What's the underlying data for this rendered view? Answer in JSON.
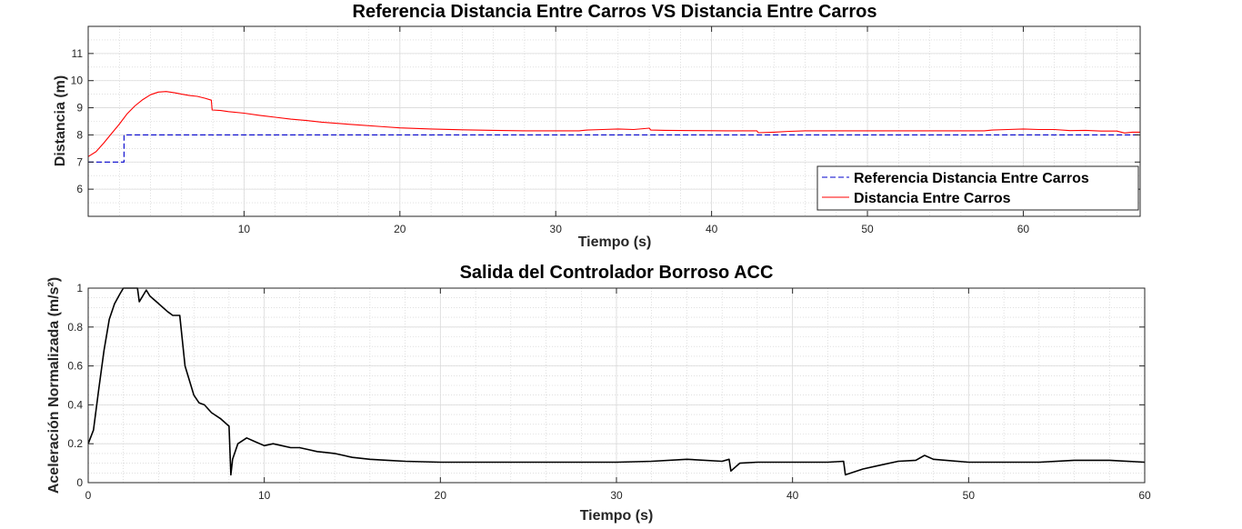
{
  "chart_data": [
    {
      "type": "line",
      "title": "Referencia Distancia Entre Carros VS Distancia Entre Carros",
      "xlabel": "Tiempo (s)",
      "ylabel": "Distancia (m)",
      "xlim": [
        0,
        67.5
      ],
      "ylim": [
        5,
        12
      ],
      "xticks": [
        "10",
        "20",
        "30",
        "40",
        "50",
        "60"
      ],
      "yticks": [
        "6",
        "7",
        "8",
        "9",
        "10",
        "11"
      ],
      "grid": "major and minor",
      "legend_position": "bottom-right",
      "series": [
        {
          "name": "Referencia Distancia Entre Carros",
          "color": "#0000cc",
          "line_style": "dashed",
          "x": [
            0,
            2.3,
            2.3,
            67.5
          ],
          "y": [
            7,
            7,
            8,
            8
          ]
        },
        {
          "name": "Distancia Entre Carros",
          "color": "#ff0000",
          "line_style": "solid",
          "x": [
            0,
            0.5,
            1,
            1.5,
            2,
            2.5,
            3,
            3.5,
            4,
            4.5,
            5,
            5.5,
            6,
            6.5,
            7,
            7.5,
            7.9,
            7.95,
            8.5,
            9,
            10,
            11,
            12,
            13,
            14,
            15,
            17,
            19,
            20,
            22,
            24,
            26,
            28,
            30,
            31.5,
            32,
            33,
            34,
            35,
            36,
            36.1,
            37,
            39,
            41,
            42.9,
            43,
            44,
            45,
            46,
            48,
            50,
            52,
            54,
            56,
            57.5,
            58,
            59,
            60,
            61,
            62,
            63,
            64,
            65,
            66,
            66.5,
            67,
            67.5
          ],
          "y": [
            7.2,
            7.38,
            7.7,
            8.05,
            8.4,
            8.78,
            9.07,
            9.3,
            9.48,
            9.58,
            9.6,
            9.56,
            9.5,
            9.45,
            9.42,
            9.35,
            9.28,
            8.92,
            8.9,
            8.86,
            8.8,
            8.72,
            8.65,
            8.58,
            8.53,
            8.47,
            8.38,
            8.3,
            8.26,
            8.22,
            8.19,
            8.17,
            8.15,
            8.15,
            8.15,
            8.18,
            8.2,
            8.22,
            8.2,
            8.25,
            8.18,
            8.17,
            8.16,
            8.15,
            8.15,
            8.08,
            8.1,
            8.13,
            8.15,
            8.15,
            8.15,
            8.15,
            8.15,
            8.15,
            8.15,
            8.18,
            8.2,
            8.22,
            8.2,
            8.2,
            8.16,
            8.17,
            8.14,
            8.14,
            8.07,
            8.1,
            8.1
          ]
        }
      ]
    },
    {
      "type": "line",
      "title": "Salida del Controlador Borroso ACC",
      "xlabel": "Tiempo (s)",
      "ylabel": "Aceleración Normalizada (m/s²)",
      "xlim": [
        0,
        60
      ],
      "ylim": [
        0,
        1
      ],
      "xticks": [
        "0",
        "10",
        "20",
        "30",
        "40",
        "50",
        "60"
      ],
      "yticks": [
        "0",
        "0.2",
        "0.4",
        "0.6",
        "0.8",
        "1"
      ],
      "grid": "major and minor",
      "series": [
        {
          "color": "#000000",
          "line_style": "solid",
          "x": [
            0,
            0.3,
            0.6,
            0.9,
            1.2,
            1.5,
            1.8,
            2.0,
            2.8,
            2.9,
            3.3,
            3.5,
            4.0,
            4.5,
            4.8,
            5.2,
            5.5,
            6.0,
            6.3,
            6.6,
            7.0,
            7.5,
            8.0,
            8.1,
            8.2,
            8.5,
            9.0,
            9.5,
            10.0,
            10.5,
            11,
            11.5,
            12,
            12.5,
            13,
            13.5,
            14,
            15,
            16,
            17,
            18,
            20,
            22,
            24,
            26,
            28,
            30,
            32,
            34,
            36,
            36.4,
            36.5,
            37,
            38,
            40,
            42,
            42.9,
            43.0,
            44,
            45,
            46,
            47,
            47.5,
            48,
            50,
            52,
            54,
            56,
            58,
            60
          ],
          "y": [
            0.2,
            0.27,
            0.48,
            0.68,
            0.84,
            0.92,
            0.97,
            1.0,
            1.0,
            0.93,
            0.99,
            0.96,
            0.92,
            0.88,
            0.86,
            0.86,
            0.6,
            0.45,
            0.41,
            0.4,
            0.36,
            0.33,
            0.29,
            0.04,
            0.12,
            0.2,
            0.23,
            0.21,
            0.19,
            0.2,
            0.19,
            0.18,
            0.18,
            0.17,
            0.16,
            0.155,
            0.15,
            0.13,
            0.12,
            0.115,
            0.11,
            0.105,
            0.105,
            0.105,
            0.105,
            0.105,
            0.105,
            0.11,
            0.12,
            0.11,
            0.12,
            0.06,
            0.1,
            0.105,
            0.105,
            0.105,
            0.11,
            0.04,
            0.07,
            0.09,
            0.11,
            0.115,
            0.14,
            0.12,
            0.105,
            0.105,
            0.105,
            0.115,
            0.115,
            0.105
          ]
        }
      ]
    }
  ]
}
